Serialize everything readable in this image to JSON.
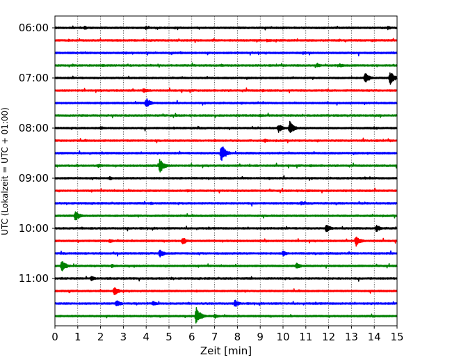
{
  "chart_data": {
    "type": "line",
    "title": "",
    "xlabel": "Zeit  [min]",
    "ylabel": "UTC (Lokalzeit = UTC + 01:00)",
    "xlim": [
      0,
      15
    ],
    "x_ticks": [
      "0",
      "1",
      "2",
      "3",
      "4",
      "5",
      "6",
      "7",
      "8",
      "9",
      "10",
      "11",
      "12",
      "13",
      "14",
      "15"
    ],
    "y_ticks": [
      "06:00",
      "07:00",
      "08:00",
      "09:00",
      "10:00",
      "11:00"
    ],
    "grid": "vertical dotted at each minute",
    "trace_colors": [
      "#000000",
      "#ff0000",
      "#0000ff",
      "#008000"
    ],
    "traces": [
      {
        "start": "06:00",
        "events": [
          [
            1.3,
            0.3
          ],
          [
            4.0,
            0.3
          ],
          [
            10.0,
            0.2
          ],
          [
            14.6,
            0.3
          ]
        ]
      },
      {
        "start": "06:15",
        "events": [
          [
            0.6,
            0.2
          ],
          [
            9.3,
            0.25
          ],
          [
            13.9,
            0.2
          ]
        ]
      },
      {
        "start": "06:30",
        "events": [
          [
            3.1,
            0.2
          ],
          [
            5.5,
            0.2
          ],
          [
            10.9,
            0.25
          ]
        ]
      },
      {
        "start": "06:45",
        "events": [
          [
            2.1,
            0.2
          ],
          [
            7.3,
            0.2
          ],
          [
            11.5,
            0.35
          ],
          [
            12.5,
            0.3
          ]
        ]
      },
      {
        "start": "07:00",
        "events": [
          [
            13.6,
            0.9
          ],
          [
            14.7,
            1.1
          ]
        ]
      },
      {
        "start": "07:15",
        "events": [
          [
            3.9,
            0.4
          ],
          [
            9.1,
            0.2
          ]
        ]
      },
      {
        "start": "07:30",
        "events": [
          [
            4.0,
            0.95
          ],
          [
            8.2,
            0.2
          ]
        ]
      },
      {
        "start": "07:45",
        "events": [
          [
            5.3,
            0.2
          ],
          [
            9.0,
            0.2
          ]
        ]
      },
      {
        "start": "08:00",
        "events": [
          [
            2.0,
            0.3
          ],
          [
            5.2,
            0.2
          ],
          [
            9.8,
            0.7
          ],
          [
            10.3,
            1.1
          ],
          [
            14.1,
            0.2
          ]
        ]
      },
      {
        "start": "08:15",
        "events": [
          [
            7.0,
            0.2
          ],
          [
            9.2,
            0.3
          ]
        ]
      },
      {
        "start": "08:30",
        "events": [
          [
            7.3,
            1.5
          ]
        ]
      },
      {
        "start": "08:45",
        "events": [
          [
            1.9,
            0.3
          ],
          [
            4.6,
            1.2
          ],
          [
            11.2,
            0.2
          ]
        ]
      },
      {
        "start": "09:00",
        "events": [
          [
            2.4,
            0.3
          ],
          [
            5.5,
            0.2
          ],
          [
            9.4,
            0.2
          ],
          [
            13.6,
            0.2
          ]
        ]
      },
      {
        "start": "09:15",
        "events": [
          [
            5.8,
            0.2
          ],
          [
            11.1,
            0.2
          ]
        ]
      },
      {
        "start": "09:30",
        "events": [
          [
            4.2,
            0.25
          ],
          [
            10.8,
            0.3
          ]
        ]
      },
      {
        "start": "09:45",
        "events": [
          [
            0.9,
            0.9
          ],
          [
            7.0,
            0.2
          ]
        ]
      },
      {
        "start": "10:00",
        "events": [
          [
            1.6,
            0.2
          ],
          [
            11.9,
            0.7
          ],
          [
            14.1,
            0.6
          ]
        ]
      },
      {
        "start": "10:15",
        "events": [
          [
            2.4,
            0.35
          ],
          [
            5.6,
            0.6
          ],
          [
            13.2,
            0.9
          ]
        ]
      },
      {
        "start": "10:30",
        "events": [
          [
            4.6,
            0.7
          ],
          [
            10.0,
            0.5
          ]
        ]
      },
      {
        "start": "10:45",
        "events": [
          [
            0.3,
            1.0
          ],
          [
            2.5,
            0.3
          ],
          [
            10.6,
            0.5
          ]
        ]
      },
      {
        "start": "11:00",
        "events": [
          [
            1.6,
            0.4
          ],
          [
            5.1,
            0.2
          ]
        ]
      },
      {
        "start": "11:15",
        "events": [
          [
            2.6,
            0.8
          ],
          [
            6.2,
            0.2
          ]
        ]
      },
      {
        "start": "11:30",
        "events": [
          [
            2.7,
            0.6
          ],
          [
            4.3,
            0.4
          ],
          [
            7.9,
            0.6
          ]
        ]
      },
      {
        "start": "11:45",
        "events": [
          [
            6.2,
            1.4
          ],
          [
            7.0,
            0.4
          ]
        ]
      }
    ]
  }
}
